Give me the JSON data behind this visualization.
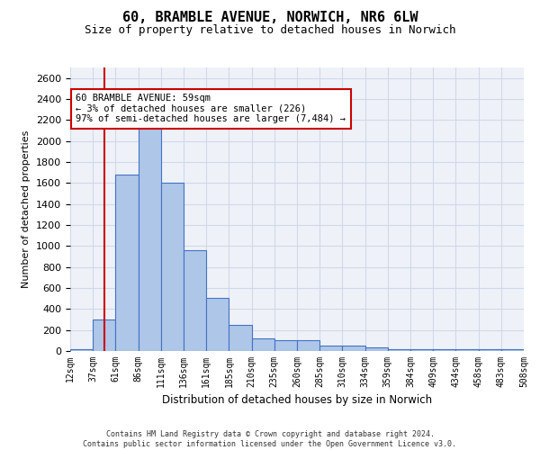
{
  "title": "60, BRAMBLE AVENUE, NORWICH, NR6 6LW",
  "subtitle": "Size of property relative to detached houses in Norwich",
  "xlabel": "Distribution of detached houses by size in Norwich",
  "ylabel": "Number of detached properties",
  "bar_values": [
    20,
    300,
    1680,
    2150,
    1600,
    960,
    505,
    250,
    120,
    100,
    100,
    50,
    50,
    35,
    20,
    20,
    20,
    20,
    20,
    20
  ],
  "bin_labels": [
    "12sqm",
    "37sqm",
    "61sqm",
    "86sqm",
    "111sqm",
    "136sqm",
    "161sqm",
    "185sqm",
    "210sqm",
    "235sqm",
    "260sqm",
    "285sqm",
    "310sqm",
    "334sqm",
    "359sqm",
    "384sqm",
    "409sqm",
    "434sqm",
    "458sqm",
    "483sqm",
    "508sqm"
  ],
  "bar_color": "#aec6e8",
  "bar_edge_color": "#4472c4",
  "grid_color": "#d0d8e8",
  "background_color": "#eef2f8",
  "vline_color": "#cc0000",
  "vline_pos": 1.5,
  "annotation_text": "60 BRAMBLE AVENUE: 59sqm\n← 3% of detached houses are smaller (226)\n97% of semi-detached houses are larger (7,484) →",
  "annotation_box_color": "#ffffff",
  "annotation_box_edge_color": "#cc0000",
  "ylim": [
    0,
    2700
  ],
  "yticks": [
    0,
    200,
    400,
    600,
    800,
    1000,
    1200,
    1400,
    1600,
    1800,
    2000,
    2200,
    2400,
    2600
  ],
  "footer_line1": "Contains HM Land Registry data © Crown copyright and database right 2024.",
  "footer_line2": "Contains public sector information licensed under the Open Government Licence v3.0."
}
